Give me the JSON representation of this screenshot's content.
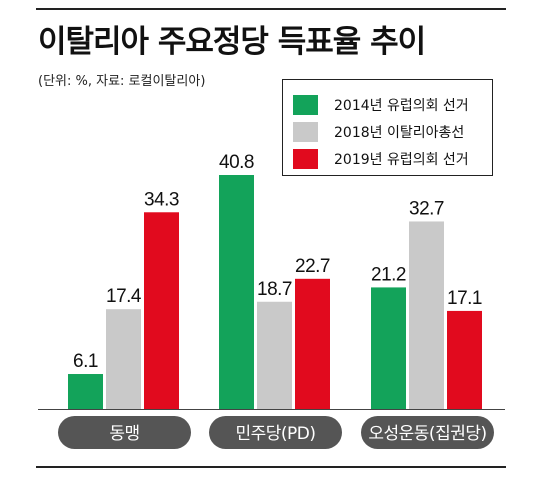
{
  "header": {
    "title": "이탈리아 주요정당 득표율 추이",
    "subtitle": "(단위: %, 자료: 로컬이탈리아)"
  },
  "colors": {
    "green": "#13a35a",
    "gray": "#c9c9c9",
    "red": "#e10a1e",
    "pill": "#555555"
  },
  "chart_data": {
    "type": "bar",
    "title": "이탈리아 주요정당 득표율 추이",
    "unit": "%",
    "categories": [
      "동맹",
      "민주당(PD)",
      "오성운동(집권당)"
    ],
    "series": [
      {
        "name": "2014년 유럽의회 선거",
        "color": "#13a35a",
        "values": [
          6.1,
          40.8,
          21.2
        ]
      },
      {
        "name": "2018년 이탈리아총선",
        "color": "#c9c9c9",
        "values": [
          17.4,
          18.7,
          32.7
        ]
      },
      {
        "name": "2019년 유럽의회 선거",
        "color": "#e10a1e",
        "values": [
          34.3,
          22.7,
          17.1
        ]
      }
    ],
    "ylim": [
      0,
      40.8
    ],
    "grid": false,
    "legend_position": "top-right"
  }
}
